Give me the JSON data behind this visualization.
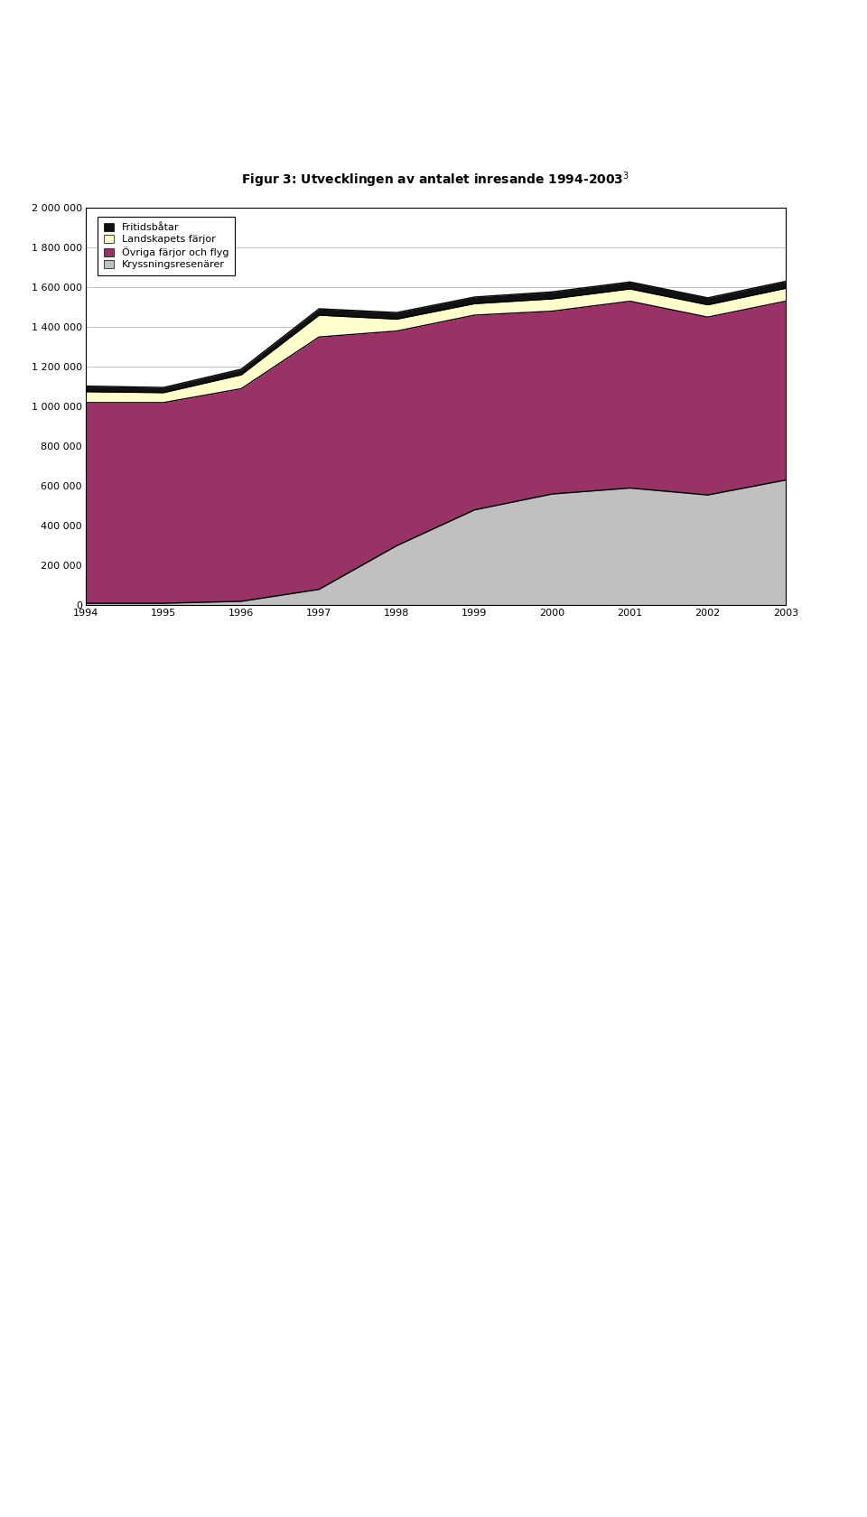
{
  "title": "Figur 3: Utvecklingen av antalet inresande 1994-2003",
  "years": [
    1994,
    1995,
    1996,
    1997,
    1998,
    1999,
    2000,
    2001,
    2002,
    2003
  ],
  "series": {
    "Kryssningsresenärer": [
      10000,
      10000,
      20000,
      80000,
      300000,
      480000,
      560000,
      590000,
      555000,
      630000
    ],
    "Övriga färjor och flyg": [
      1010000,
      1010000,
      1070000,
      1270000,
      1080000,
      980000,
      920000,
      940000,
      895000,
      900000
    ],
    "Landskapets färjor": [
      55000,
      50000,
      70000,
      110000,
      60000,
      58000,
      62000,
      62000,
      62000,
      65000
    ],
    "Fritidsbåtar": [
      28000,
      26000,
      28000,
      32000,
      33000,
      33000,
      35000,
      35000,
      35000,
      35000
    ]
  },
  "colors": {
    "Kryssningsresenärer": "#c0c0c0",
    "Övriga färjor och flyg": "#993366",
    "Landskapets färjor": "#ffffcc",
    "Fritidsbåtar": "#111111"
  },
  "ylim": [
    0,
    2000000
  ],
  "yticks": [
    0,
    200000,
    400000,
    600000,
    800000,
    1000000,
    1200000,
    1400000,
    1600000,
    1800000,
    2000000
  ],
  "background_color": "#ffffff",
  "plot_background": "#ffffff",
  "legend_order": [
    "Fritidsbåtar",
    "Landskapets färjor",
    "Övriga färjor och flyg",
    "Kryssningsresenärer"
  ],
  "stack_order": [
    "Kryssningsresenärer",
    "Övriga färjor och flyg",
    "Landskapets färjor",
    "Fritidsbåtar"
  ]
}
